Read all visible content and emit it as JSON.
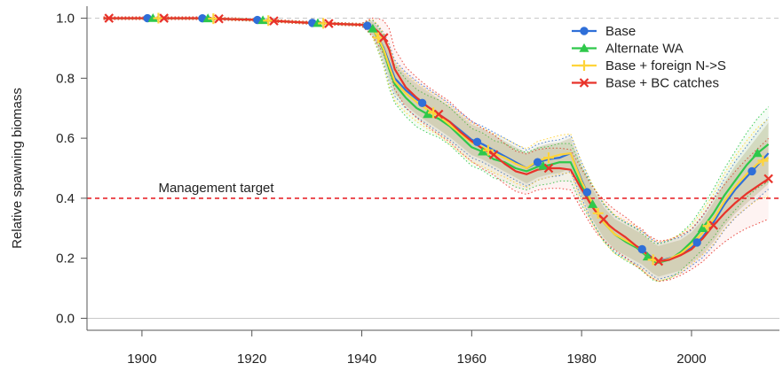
{
  "chart_data": {
    "type": "line",
    "title": "",
    "xlabel": "",
    "ylabel": "Relative spawning biomass",
    "xlim": [
      1890,
      2016
    ],
    "ylim": [
      -0.04,
      1.04
    ],
    "x_ticks": [
      1900,
      1920,
      1940,
      1960,
      1980,
      2000
    ],
    "y_ticks": [
      0.0,
      0.2,
      0.4,
      0.6,
      0.8,
      1.0
    ],
    "y_tick_labels": [
      "0.0",
      "0.2",
      "0.4",
      "0.6",
      "0.8",
      "1.0"
    ],
    "grid": false,
    "legend_position": "top-right",
    "reference_lines": [
      {
        "y": 1.0,
        "color": "#c8c8c8",
        "style": "dashed"
      },
      {
        "y": 0.0,
        "color": "#c8c8c8",
        "style": "solid"
      },
      {
        "y": 0.4,
        "color": "#e8282d",
        "style": "dashed"
      }
    ],
    "annotations": [
      {
        "text": "Management target",
        "x": 1903,
        "y": 0.42
      }
    ],
    "series": [
      {
        "name": "Base",
        "color": "#2f6fd8",
        "marker": "circle",
        "x": [
          1893,
          1900,
          1910,
          1920,
          1930,
          1940,
          1941,
          1942,
          1943,
          1944,
          1945,
          1946,
          1948,
          1950,
          1952,
          1954,
          1956,
          1958,
          1960,
          1962,
          1964,
          1966,
          1968,
          1970,
          1972,
          1974,
          1976,
          1978,
          1980,
          1981,
          1982,
          1983,
          1984,
          1985,
          1986,
          1988,
          1990,
          1991,
          1992,
          1993,
          1994,
          1996,
          1998,
          2000,
          2002,
          2004,
          2006,
          2008,
          2010,
          2012,
          2014
        ],
        "y": [
          1.0,
          1.0,
          1.0,
          0.995,
          0.985,
          0.978,
          0.975,
          0.965,
          0.935,
          0.9,
          0.85,
          0.8,
          0.76,
          0.73,
          0.705,
          0.68,
          0.655,
          0.625,
          0.595,
          0.58,
          0.56,
          0.54,
          0.52,
          0.5,
          0.52,
          0.53,
          0.535,
          0.55,
          0.46,
          0.42,
          0.38,
          0.35,
          0.32,
          0.3,
          0.28,
          0.26,
          0.24,
          0.23,
          0.215,
          0.2,
          0.19,
          0.2,
          0.21,
          0.235,
          0.27,
          0.32,
          0.38,
          0.43,
          0.47,
          0.51,
          0.55
        ],
        "marker_x": [
          1901,
          1911,
          1921,
          1931,
          1941,
          1951,
          1961,
          1972,
          1981,
          1991,
          2001,
          2011
        ]
      },
      {
        "name": "Alternate WA",
        "color": "#2ec84a",
        "marker": "triangle",
        "x": [
          1893,
          1900,
          1910,
          1920,
          1930,
          1940,
          1941,
          1942,
          1943,
          1944,
          1945,
          1946,
          1948,
          1950,
          1952,
          1954,
          1956,
          1958,
          1960,
          1962,
          1964,
          1966,
          1968,
          1970,
          1972,
          1974,
          1976,
          1978,
          1980,
          1981,
          1982,
          1983,
          1984,
          1985,
          1986,
          1988,
          1990,
          1991,
          1992,
          1993,
          1994,
          1996,
          1998,
          2000,
          2002,
          2004,
          2006,
          2008,
          2010,
          2012,
          2014
        ],
        "y": [
          1.0,
          1.0,
          1.0,
          0.995,
          0.985,
          0.978,
          0.975,
          0.965,
          0.93,
          0.89,
          0.83,
          0.78,
          0.735,
          0.7,
          0.68,
          0.665,
          0.64,
          0.605,
          0.57,
          0.555,
          0.53,
          0.52,
          0.5,
          0.49,
          0.505,
          0.51,
          0.52,
          0.52,
          0.44,
          0.41,
          0.38,
          0.35,
          0.32,
          0.3,
          0.28,
          0.255,
          0.235,
          0.22,
          0.205,
          0.19,
          0.185,
          0.195,
          0.22,
          0.255,
          0.3,
          0.35,
          0.41,
          0.46,
          0.51,
          0.55,
          0.58
        ],
        "marker_x": [
          1902,
          1912,
          1922,
          1932,
          1942,
          1952,
          1962,
          1973,
          1982,
          1992,
          2002,
          2012
        ]
      },
      {
        "name": "Base + foreign N->S",
        "color": "#ffd43a",
        "marker": "plus",
        "x": [
          1893,
          1900,
          1910,
          1920,
          1930,
          1940,
          1941,
          1942,
          1943,
          1944,
          1945,
          1946,
          1948,
          1950,
          1952,
          1954,
          1956,
          1958,
          1960,
          1962,
          1964,
          1966,
          1968,
          1970,
          1972,
          1974,
          1976,
          1978,
          1980,
          1981,
          1982,
          1983,
          1984,
          1985,
          1986,
          1988,
          1990,
          1991,
          1992,
          1993,
          1994,
          1996,
          1998,
          2000,
          2002,
          2004,
          2006,
          2008,
          2010,
          2012,
          2014
        ],
        "y": [
          1.0,
          1.0,
          1.0,
          0.995,
          0.985,
          0.978,
          0.975,
          0.965,
          0.935,
          0.895,
          0.84,
          0.79,
          0.75,
          0.72,
          0.695,
          0.675,
          0.645,
          0.615,
          0.585,
          0.57,
          0.55,
          0.535,
          0.515,
          0.5,
          0.525,
          0.535,
          0.545,
          0.55,
          0.455,
          0.42,
          0.38,
          0.35,
          0.32,
          0.3,
          0.28,
          0.26,
          0.24,
          0.225,
          0.21,
          0.195,
          0.188,
          0.198,
          0.215,
          0.245,
          0.285,
          0.33,
          0.39,
          0.44,
          0.48,
          0.515,
          0.535
        ],
        "marker_x": [
          1903,
          1913,
          1923,
          1933,
          1943,
          1953,
          1963,
          1974,
          1983,
          1993,
          2003,
          2013
        ]
      },
      {
        "name": "Base + BC catches",
        "color": "#e8332a",
        "marker": "x",
        "x": [
          1893,
          1900,
          1910,
          1920,
          1930,
          1940,
          1941,
          1942,
          1943,
          1944,
          1945,
          1946,
          1948,
          1950,
          1952,
          1954,
          1956,
          1958,
          1960,
          1962,
          1964,
          1966,
          1968,
          1970,
          1972,
          1974,
          1976,
          1978,
          1980,
          1981,
          1982,
          1983,
          1984,
          1985,
          1986,
          1988,
          1990,
          1991,
          1992,
          1993,
          1994,
          1996,
          1998,
          2000,
          2002,
          2004,
          2006,
          2008,
          2010,
          2012,
          2014
        ],
        "y": [
          1.0,
          1.0,
          1.0,
          0.995,
          0.985,
          0.978,
          0.975,
          0.97,
          0.955,
          0.935,
          0.895,
          0.83,
          0.77,
          0.735,
          0.705,
          0.68,
          0.655,
          0.62,
          0.59,
          0.565,
          0.545,
          0.515,
          0.49,
          0.48,
          0.495,
          0.5,
          0.5,
          0.495,
          0.43,
          0.4,
          0.37,
          0.345,
          0.33,
          0.31,
          0.295,
          0.27,
          0.24,
          0.23,
          0.21,
          0.2,
          0.19,
          0.195,
          0.21,
          0.23,
          0.265,
          0.31,
          0.35,
          0.385,
          0.415,
          0.44,
          0.465
        ],
        "marker_x": [
          1894,
          1904,
          1914,
          1924,
          1934,
          1944,
          1954,
          1964,
          1974,
          1984,
          1994,
          2004,
          2014
        ]
      }
    ]
  }
}
